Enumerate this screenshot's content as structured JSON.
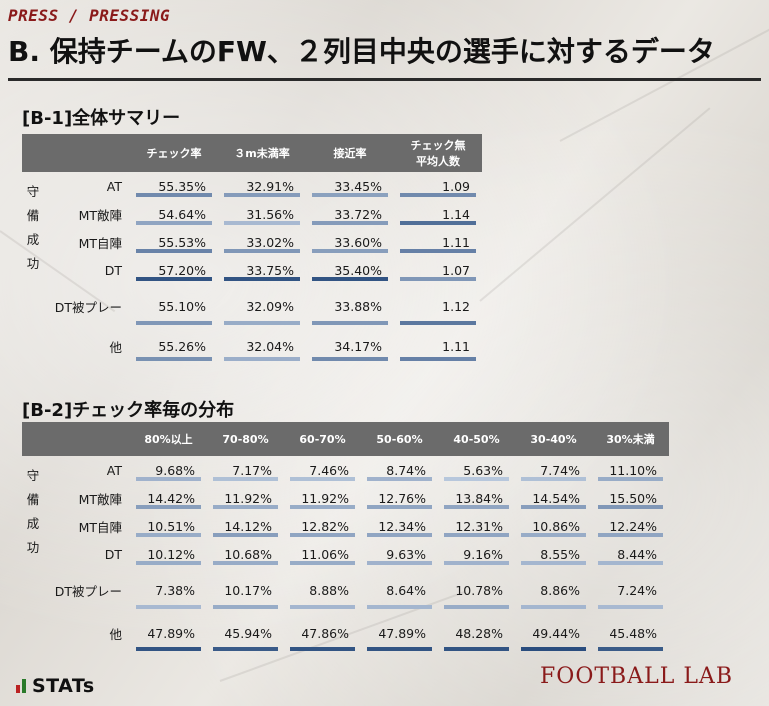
{
  "header": {
    "section": "PRESS / PRESSING",
    "title": "B. 保持チームのFW、２列目中央の選手に対するデータ"
  },
  "b1": {
    "title": "[B-1]全体サマリー",
    "columns": [
      "チェック率",
      "３m未満率",
      "接近率",
      "チェック無\n平均人数"
    ],
    "side_label": [
      "守",
      "備",
      "成",
      "功"
    ],
    "rows": [
      {
        "label": "AT",
        "values": [
          "55.35%",
          "32.91%",
          "33.45%",
          "1.09"
        ],
        "levels": [
          0.55,
          0.42,
          0.38,
          0.55
        ]
      },
      {
        "label": "MT敵陣",
        "values": [
          "54.64%",
          "31.56%",
          "33.72%",
          "1.14"
        ],
        "levels": [
          0.35,
          0.2,
          0.42,
          0.75
        ]
      },
      {
        "label": "MT自陣",
        "values": [
          "55.53%",
          "33.02%",
          "33.60%",
          "1.11"
        ],
        "levels": [
          0.6,
          0.45,
          0.4,
          0.62
        ]
      },
      {
        "label": "DT",
        "values": [
          "57.20%",
          "33.75%",
          "35.40%",
          "1.07"
        ],
        "levels": [
          0.95,
          0.95,
          0.95,
          0.45
        ]
      },
      {
        "label": "DT被プレー",
        "values": [
          "55.10%",
          "32.09%",
          "33.88%",
          "1.12"
        ],
        "levels": [
          0.45,
          0.3,
          0.45,
          0.68
        ]
      },
      {
        "label": "他",
        "values": [
          "55.26%",
          "32.04%",
          "34.17%",
          "1.11"
        ],
        "levels": [
          0.5,
          0.28,
          0.55,
          0.62
        ]
      }
    ]
  },
  "b2": {
    "title": "[B-2]チェック率毎の分布",
    "columns": [
      "80%以上",
      "70-80%",
      "60-70%",
      "50-60%",
      "40-50%",
      "30-40%",
      "30%未満"
    ],
    "side_label": [
      "守",
      "備",
      "成",
      "功"
    ],
    "rows": [
      {
        "label": "AT",
        "values": [
          "9.68%",
          "7.17%",
          "7.46%",
          "8.74%",
          "5.63%",
          "7.74%",
          "11.10%"
        ],
        "levels": [
          0.25,
          0.15,
          0.15,
          0.25,
          0.1,
          0.15,
          0.3
        ]
      },
      {
        "label": "MT敵陣",
        "values": [
          "14.42%",
          "11.92%",
          "11.92%",
          "12.76%",
          "13.84%",
          "14.54%",
          "15.50%"
        ],
        "levels": [
          0.4,
          0.3,
          0.3,
          0.35,
          0.35,
          0.4,
          0.45
        ]
      },
      {
        "label": "MT自陣",
        "values": [
          "10.51%",
          "14.12%",
          "12.82%",
          "12.34%",
          "12.31%",
          "10.86%",
          "12.24%"
        ],
        "levels": [
          0.3,
          0.4,
          0.35,
          0.35,
          0.35,
          0.3,
          0.35
        ]
      },
      {
        "label": "DT",
        "values": [
          "10.12%",
          "10.68%",
          "11.06%",
          "9.63%",
          "9.16%",
          "8.55%",
          "8.44%"
        ],
        "levels": [
          0.3,
          0.3,
          0.3,
          0.25,
          0.25,
          0.22,
          0.22
        ]
      },
      {
        "label": "DT被プレー",
        "values": [
          "7.38%",
          "10.17%",
          "8.88%",
          "8.64%",
          "10.78%",
          "8.86%",
          "7.24%"
        ],
        "levels": [
          0.2,
          0.3,
          0.22,
          0.22,
          0.3,
          0.22,
          0.2
        ]
      },
      {
        "label": "他",
        "values": [
          "47.89%",
          "45.94%",
          "47.86%",
          "47.89%",
          "48.28%",
          "49.44%",
          "45.48%"
        ],
        "levels": [
          0.95,
          0.9,
          0.95,
          0.95,
          0.95,
          1.0,
          0.9
        ]
      }
    ]
  },
  "footer": {
    "left_logo": "STATs",
    "right_logo": "FOOTBALL LAB"
  },
  "colors": {
    "title_red": "#8a1a1a",
    "header_gray": "#6b6b6b",
    "bar_dark": "#2a4d7e",
    "bar_light": "#c7d4e6"
  }
}
